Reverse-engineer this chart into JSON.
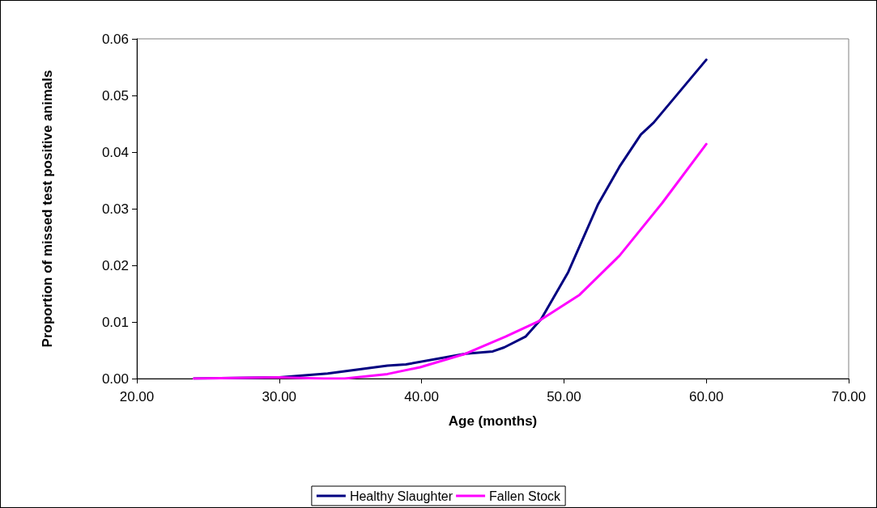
{
  "chart_data": {
    "type": "line",
    "xlabel": "Age (months)",
    "ylabel": "Proportion of missed test positive animals",
    "xlim": [
      20,
      70
    ],
    "xticks": [
      {
        "value": 20,
        "label": "20.00"
      },
      {
        "value": 30,
        "label": "30.00"
      },
      {
        "value": 40,
        "label": "40.00"
      },
      {
        "value": 50,
        "label": "50.00"
      },
      {
        "value": 60,
        "label": "60.00"
      },
      {
        "value": 70,
        "label": "70.00"
      }
    ],
    "ylim": [
      0,
      0.06
    ],
    "yticks": [
      {
        "value": 0,
        "label": "0.00"
      },
      {
        "value": 0.01,
        "label": "0.01"
      },
      {
        "value": 0.02,
        "label": "0.02"
      },
      {
        "value": 0.03,
        "label": "0.03"
      },
      {
        "value": 0.04,
        "label": "0.04"
      },
      {
        "value": 0.05,
        "label": "0.05"
      },
      {
        "value": 0.06,
        "label": "0.06"
      }
    ],
    "grid": false,
    "legend": "bottom",
    "marker": "none",
    "line_style": "solid",
    "series": [
      {
        "name": "Healthy Slaughter",
        "color": "#000080",
        "x": [
          24,
          30,
          33.4,
          37.6,
          38.9,
          43.1,
          45,
          45.8,
          47.3,
          48.4,
          50.3,
          52.4,
          53.9,
          55.4,
          56.3,
          60
        ],
        "values": [
          0,
          0.0002,
          0.0009,
          0.0023,
          0.0025,
          0.0044,
          0.0048,
          0.0055,
          0.0074,
          0.0105,
          0.0188,
          0.0308,
          0.0374,
          0.0431,
          0.0452,
          0.0563
        ]
      },
      {
        "name": "Fallen Stock",
        "color": "#ff00ff",
        "x": [
          24,
          30,
          33.1,
          34.6,
          37.6,
          39.9,
          43.1,
          45.9,
          48.2,
          51.1,
          53.9,
          56.9,
          60
        ],
        "values": [
          0,
          0.0002,
          0,
          0,
          0.0008,
          0.002,
          0.0044,
          0.0074,
          0.0101,
          0.0148,
          0.0217,
          0.031,
          0.0414
        ]
      }
    ]
  }
}
